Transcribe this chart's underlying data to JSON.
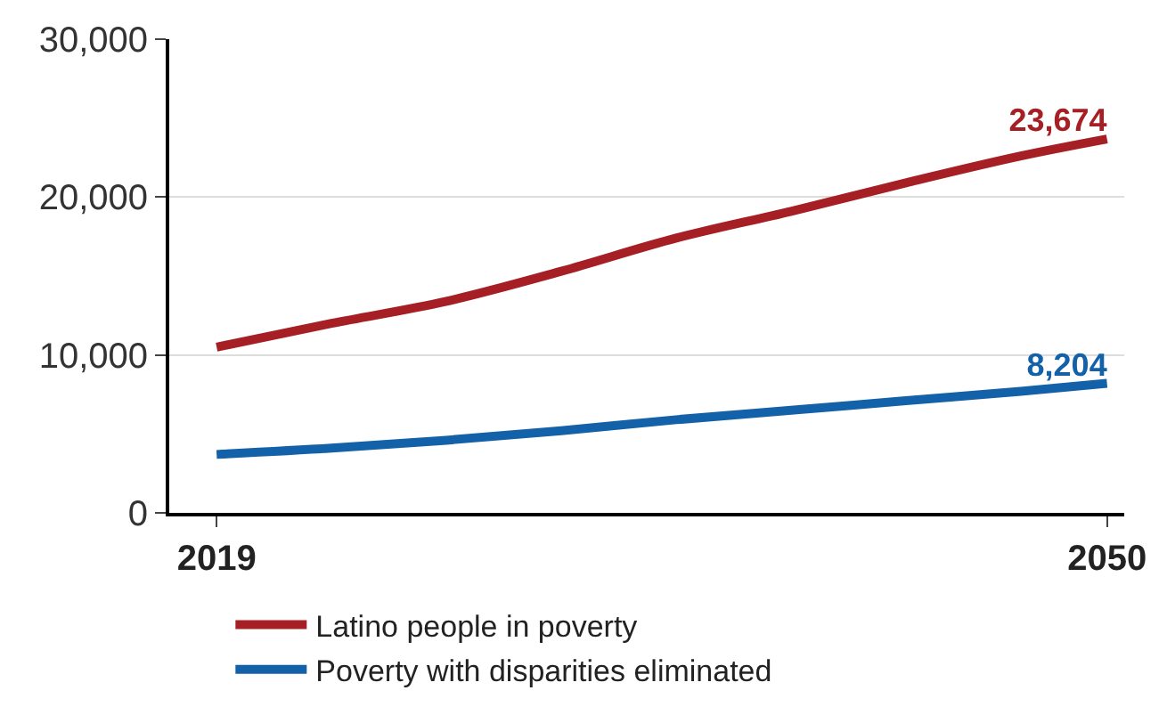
{
  "chart_data": {
    "type": "line",
    "x": [
      2019,
      2023,
      2027,
      2031,
      2035,
      2039,
      2043,
      2047,
      2050
    ],
    "series": [
      {
        "name": "Latino people in poverty",
        "color": "#a51f24",
        "values": [
          10500,
          12000,
          13400,
          15300,
          17400,
          19100,
          20900,
          22600,
          23674
        ],
        "value_labels": [
          null,
          null,
          null,
          null,
          null,
          null,
          null,
          null,
          "23,674"
        ]
      },
      {
        "name": "Poverty with disparities eliminated",
        "color": "#1361a8",
        "values": [
          3700,
          4100,
          4600,
          5200,
          5900,
          6500,
          7100,
          7700,
          8204
        ],
        "value_labels": [
          null,
          null,
          null,
          null,
          null,
          null,
          null,
          null,
          "8,204"
        ]
      }
    ],
    "xlim": [
      2017.35,
      2050.6
    ],
    "xticks": [
      2019,
      2050
    ],
    "ylim": [
      0,
      30000
    ],
    "yticks": [
      {
        "value": 0,
        "label": "0"
      },
      {
        "value": 10000,
        "label": "10,000"
      },
      {
        "value": 20000,
        "label": "20,000"
      },
      {
        "value": 30000,
        "label": "30,000"
      }
    ],
    "grid": "y",
    "legend": "bottom",
    "marker": "none",
    "line_style": "solid"
  }
}
